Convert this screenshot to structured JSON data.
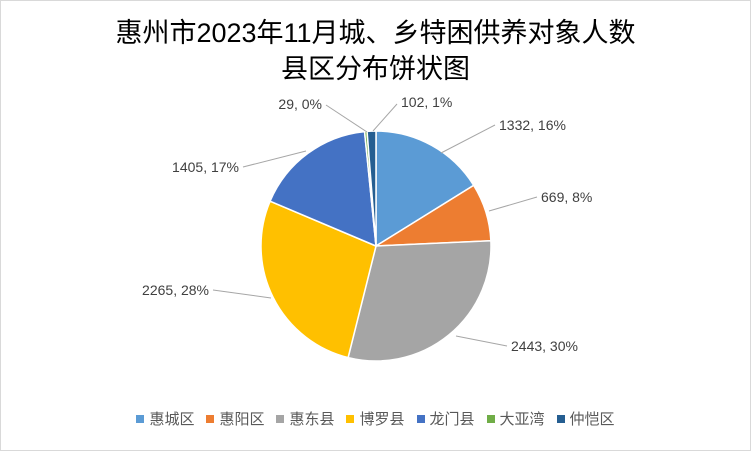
{
  "chart_data": {
    "type": "pie",
    "title_lines": [
      "惠州市2023年11月城、乡特困供养对象人数",
      "县区分布饼状图"
    ],
    "categories": [
      "惠城区",
      "惠阳区",
      "惠东县",
      "博罗县",
      "龙门县",
      "大亚湾",
      "仲恺区"
    ],
    "values": [
      1332,
      669,
      2443,
      2265,
      1405,
      29,
      102
    ],
    "data_labels": [
      "1332, 16%",
      "669, 8%",
      "2443, 30%",
      "2265, 28%",
      "1405, 17%",
      "29, 0%",
      "102, 1%"
    ],
    "colors": [
      "#5B9BD5",
      "#ED7D31",
      "#A5A5A5",
      "#FFC000",
      "#4472C4",
      "#70AD47",
      "#255E91"
    ],
    "start_angle": "top, clockwise",
    "legend_position": "bottom"
  }
}
